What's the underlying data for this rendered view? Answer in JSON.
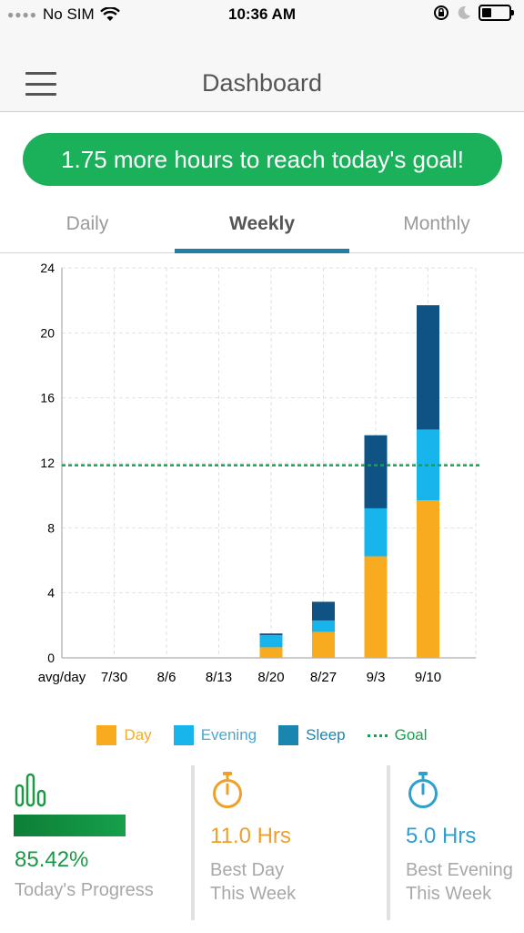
{
  "status_bar": {
    "carrier": "No SIM",
    "time": "10:36 AM"
  },
  "header": {
    "title": "Dashboard"
  },
  "goal_banner": {
    "text": "1.75 more hours to reach today's goal!"
  },
  "tabs": [
    {
      "label": "Daily",
      "active": false
    },
    {
      "label": "Weekly",
      "active": true
    },
    {
      "label": "Monthly",
      "active": false
    }
  ],
  "colors": {
    "day": "#f9ab1f",
    "evening": "#17b5ec",
    "sleep": "#0e5384",
    "sleep_legend": "#1a86b0",
    "goal": "#1aa050",
    "banner": "#1bb05a",
    "best_day": "#f0a02a",
    "best_evening": "#2f9fd0"
  },
  "chart_data": {
    "type": "bar",
    "stacked": true,
    "categories": [
      "avg/day",
      "7/30",
      "8/6",
      "8/13",
      "8/20",
      "8/27",
      "9/3",
      "9/10"
    ],
    "series": [
      {
        "name": "Day",
        "values": [
          0,
          0,
          0,
          0,
          0.65,
          1.6,
          6.25,
          9.7
        ]
      },
      {
        "name": "Evening",
        "values": [
          0,
          0,
          0,
          0,
          0.75,
          0.7,
          2.95,
          4.35
        ]
      },
      {
        "name": "Sleep",
        "values": [
          0,
          0,
          0,
          0,
          0.1,
          1.15,
          4.5,
          7.65
        ]
      }
    ],
    "goal": 11.85,
    "goal_label": "Goal",
    "ylim": [
      0,
      24
    ],
    "yticks": [
      0,
      4,
      8,
      12,
      16,
      20,
      24
    ],
    "grid": true,
    "legend_position": "bottom"
  },
  "stats": {
    "progress": {
      "value": "85.42%",
      "fraction": 0.8542,
      "label": "Today's Progress"
    },
    "best_day": {
      "value": "11.0 Hrs",
      "label_line1": "Best Day",
      "label_line2": "This Week"
    },
    "best_evening": {
      "value": "5.0 Hrs",
      "label_line1": "Best Evening",
      "label_line2": "This Week"
    }
  }
}
